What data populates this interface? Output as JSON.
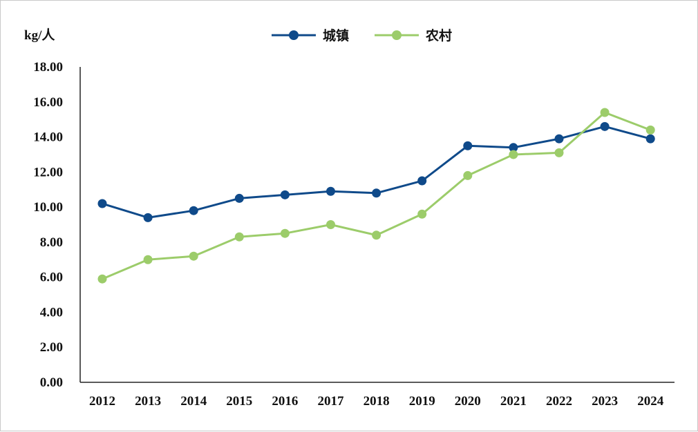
{
  "chart_data": {
    "type": "line",
    "unit_label": "kg/人",
    "categories": [
      "2012",
      "2013",
      "2014",
      "2015",
      "2016",
      "2017",
      "2018",
      "2019",
      "2020",
      "2021",
      "2022",
      "2023",
      "2024"
    ],
    "series": [
      {
        "name": "城镇",
        "color": "#0f4a8a",
        "values": [
          10.2,
          9.4,
          9.8,
          10.5,
          10.7,
          10.9,
          10.8,
          11.5,
          13.5,
          13.4,
          13.9,
          14.6,
          13.9
        ]
      },
      {
        "name": "农村",
        "color": "#9ccc6a",
        "values": [
          5.9,
          7.0,
          7.2,
          8.3,
          8.5,
          9.0,
          8.4,
          9.6,
          11.8,
          13.0,
          13.1,
          15.4,
          14.4
        ]
      }
    ],
    "yticks": [
      "0.00",
      "2.00",
      "4.00",
      "6.00",
      "8.00",
      "10.00",
      "12.00",
      "14.00",
      "16.00",
      "18.00"
    ],
    "ylim": [
      0,
      18
    ],
    "legend_position": "top-center",
    "grid": false
  }
}
